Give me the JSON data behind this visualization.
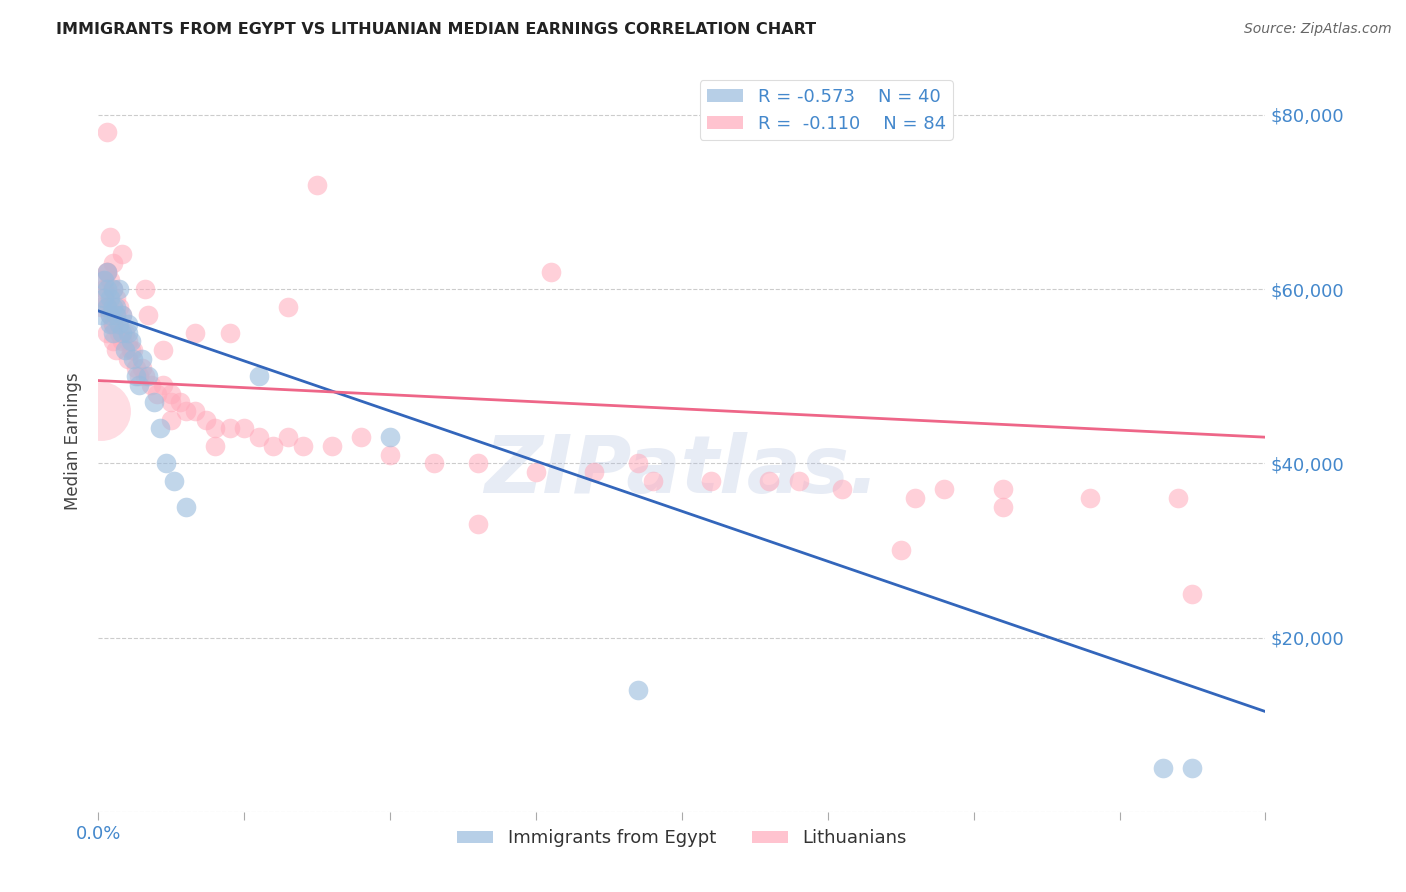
{
  "title": "IMMIGRANTS FROM EGYPT VS LITHUANIAN MEDIAN EARNINGS CORRELATION CHART",
  "source": "Source: ZipAtlas.com",
  "ylabel": "Median Earnings",
  "xlim": [
    0.0,
    0.4
  ],
  "ylim": [
    0,
    85000
  ],
  "yticks": [
    0,
    20000,
    40000,
    60000,
    80000
  ],
  "ytick_labels": [
    "",
    "$20,000",
    "$40,000",
    "$60,000",
    "$80,000"
  ],
  "xticks": [
    0.0,
    0.05,
    0.1,
    0.15,
    0.2,
    0.25,
    0.3,
    0.35,
    0.4
  ],
  "xtick_labels_shown": {
    "0.0": "0.0%",
    "0.40": "40.0%"
  },
  "watermark": "ZIPatlas.",
  "legend_egypt_R": "-0.573",
  "legend_egypt_N": "40",
  "legend_lith_R": "-0.110",
  "legend_lith_N": "84",
  "blue_color": "#99BBDD",
  "pink_color": "#FFAABB",
  "blue_line_color": "#3366BB",
  "pink_line_color": "#EE6688",
  "axis_label_color": "#4488CC",
  "tick_label_color": "#4488CC",
  "blue_line_x": [
    0.0,
    0.4
  ],
  "blue_line_y": [
    57500,
    11500
  ],
  "pink_line_x": [
    0.0,
    0.4
  ],
  "pink_line_y": [
    49500,
    43000
  ],
  "egypt_x": [
    0.001,
    0.002,
    0.002,
    0.003,
    0.003,
    0.003,
    0.004,
    0.004,
    0.004,
    0.005,
    0.005,
    0.005,
    0.006,
    0.006,
    0.007,
    0.007,
    0.008,
    0.008,
    0.009,
    0.01,
    0.01,
    0.011,
    0.012,
    0.013,
    0.014,
    0.015,
    0.017,
    0.019,
    0.021,
    0.023,
    0.026,
    0.03,
    0.055,
    0.1,
    0.185,
    0.365
  ],
  "egypt_y": [
    57000,
    61000,
    59000,
    60000,
    62000,
    58000,
    57000,
    59000,
    56000,
    58000,
    60000,
    55000,
    57000,
    58000,
    56000,
    60000,
    55000,
    57000,
    53000,
    56000,
    55000,
    54000,
    52000,
    50000,
    49000,
    52000,
    50000,
    47000,
    44000,
    40000,
    38000,
    35000,
    50000,
    43000,
    14000,
    5000
  ],
  "egypt_extra_x": [
    0.365
  ],
  "egypt_extra_y": [
    5000
  ],
  "lith_x": [
    0.001,
    0.001,
    0.002,
    0.002,
    0.003,
    0.003,
    0.003,
    0.004,
    0.004,
    0.005,
    0.005,
    0.005,
    0.006,
    0.006,
    0.006,
    0.007,
    0.007,
    0.008,
    0.008,
    0.009,
    0.01,
    0.01,
    0.011,
    0.012,
    0.013,
    0.014,
    0.015,
    0.016,
    0.018,
    0.02,
    0.022,
    0.025,
    0.028,
    0.03,
    0.033,
    0.037,
    0.04,
    0.045,
    0.05,
    0.055,
    0.06,
    0.065,
    0.07,
    0.08,
    0.09,
    0.1,
    0.115,
    0.13,
    0.15,
    0.17,
    0.19,
    0.21,
    0.23,
    0.255,
    0.28,
    0.31,
    0.34,
    0.37,
    0.003,
    0.075,
    0.155,
    0.016,
    0.033,
    0.045,
    0.13,
    0.025,
    0.275,
    0.375,
    0.025,
    0.04,
    0.008,
    0.005,
    0.004,
    0.017,
    0.022,
    0.065,
    0.185,
    0.24,
    0.29,
    0.31,
    0.005,
    0.003
  ],
  "lith_y": [
    58000,
    61000,
    60000,
    59000,
    62000,
    58000,
    55000,
    61000,
    57000,
    60000,
    56000,
    54000,
    59000,
    57000,
    53000,
    58000,
    55000,
    57000,
    54000,
    55000,
    54000,
    52000,
    53000,
    53000,
    51000,
    50000,
    51000,
    50000,
    49000,
    48000,
    49000,
    47000,
    47000,
    46000,
    46000,
    45000,
    44000,
    44000,
    44000,
    43000,
    42000,
    43000,
    42000,
    42000,
    43000,
    41000,
    40000,
    40000,
    39000,
    39000,
    38000,
    38000,
    38000,
    37000,
    36000,
    37000,
    36000,
    36000,
    78000,
    72000,
    62000,
    60000,
    55000,
    55000,
    33000,
    45000,
    30000,
    25000,
    48000,
    42000,
    64000,
    63000,
    66000,
    57000,
    53000,
    58000,
    40000,
    38000,
    37000,
    35000,
    56000,
    62000
  ],
  "lith_big_x": [
    0.001
  ],
  "lith_big_y": [
    46000
  ],
  "blue_outlier_x": [
    0.375
  ],
  "blue_outlier_y": [
    5000
  ]
}
